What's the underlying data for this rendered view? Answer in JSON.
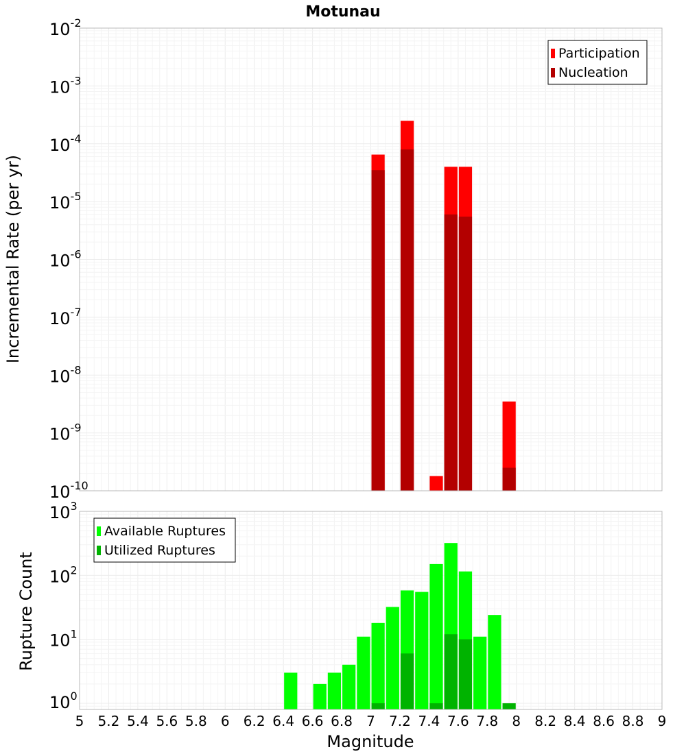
{
  "chart_data": {
    "title": "Motunau",
    "xlabel": "Magnitude",
    "x_ticks": [
      "5",
      "5.2",
      "5.4",
      "5.6",
      "5.8",
      "6",
      "6.2",
      "6.4",
      "6.6",
      "6.8",
      "7",
      "7.2",
      "7.4",
      "7.6",
      "7.8",
      "8",
      "8.2",
      "8.4",
      "8.6",
      "8.8",
      "9"
    ],
    "xlim": [
      5,
      9
    ],
    "bin_width": 0.1,
    "panels": [
      {
        "type": "bar",
        "ylabel": "Incremental Rate (per yr)",
        "yscale": "log",
        "ylim_exp": [
          -10,
          -2
        ],
        "y_ticks": [
          {
            "base": "10",
            "exp": "-2"
          },
          {
            "base": "10",
            "exp": "-3"
          },
          {
            "base": "10",
            "exp": "-4"
          },
          {
            "base": "10",
            "exp": "-5"
          },
          {
            "base": "10",
            "exp": "-6"
          },
          {
            "base": "10",
            "exp": "-7"
          },
          {
            "base": "10",
            "exp": "-8"
          },
          {
            "base": "10",
            "exp": "-9"
          },
          {
            "base": "10",
            "exp": "-10"
          }
        ],
        "legend_position": "top-right",
        "series": [
          {
            "name": "Participation",
            "color": "#ff0000",
            "x": [
              7.05,
              7.25,
              7.45,
              7.55,
              7.65,
              7.95
            ],
            "values": [
              6.5e-05,
              0.00025,
              1.8e-10,
              4e-05,
              4e-05,
              3.5e-09
            ]
          },
          {
            "name": "Nucleation",
            "color": "#b30000",
            "x": [
              7.05,
              7.25,
              7.55,
              7.65,
              7.95
            ],
            "values": [
              3.5e-05,
              8e-05,
              6e-06,
              5.5e-06,
              2.5e-10
            ]
          }
        ]
      },
      {
        "type": "bar",
        "ylabel": "Rupture Count",
        "yscale": "log",
        "ylim": [
          0.8,
          1000
        ],
        "y_ticks": [
          {
            "base": "10",
            "exp": "3"
          },
          {
            "base": "10",
            "exp": "2"
          },
          {
            "base": "10",
            "exp": "1"
          },
          {
            "base": "10",
            "exp": "0"
          }
        ],
        "legend_position": "top-left",
        "series": [
          {
            "name": "Available Ruptures",
            "color": "#00ff00",
            "x": [
              6.45,
              6.65,
              6.75,
              6.85,
              6.95,
              7.05,
              7.15,
              7.25,
              7.35,
              7.45,
              7.55,
              7.65,
              7.75,
              7.85
            ],
            "values": [
              3,
              2,
              3,
              4,
              11,
              18,
              32,
              58,
              55,
              150,
              320,
              115,
              11,
              24
            ]
          },
          {
            "name": "Utilized Ruptures",
            "color": "#00b300",
            "x": [
              7.05,
              7.25,
              7.45,
              7.55,
              7.65,
              7.95
            ],
            "values": [
              1,
              6,
              1,
              12,
              10,
              1
            ]
          }
        ]
      }
    ]
  }
}
